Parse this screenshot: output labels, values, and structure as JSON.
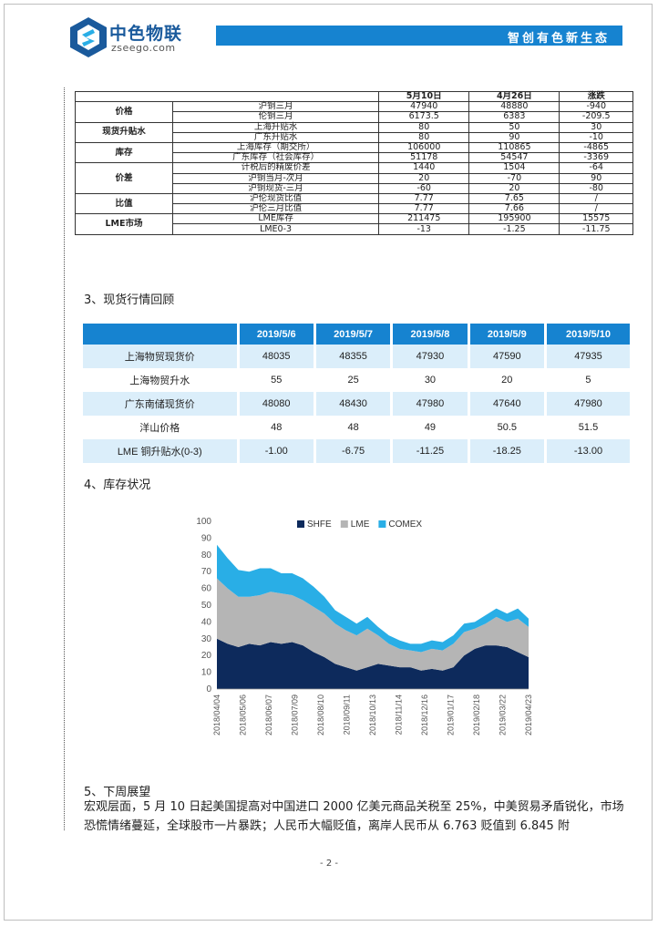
{
  "header": {
    "logo_cn": "中色物联",
    "logo_en": "zseego.com",
    "slogan": "智创有色新生态"
  },
  "table1": {
    "headers": [
      "",
      "",
      "5月10日",
      "4月26日",
      "涨跌"
    ],
    "groups": [
      {
        "category": "价格",
        "rows": [
          [
            "沪铜三月",
            "47940",
            "48880",
            "-940"
          ],
          [
            "伦铜三月",
            "6173.5",
            "6383",
            "-209.5"
          ]
        ]
      },
      {
        "category": "现货升贴水",
        "rows": [
          [
            "上海升贴水",
            "80",
            "50",
            "30"
          ],
          [
            "广东升贴水",
            "80",
            "90",
            "-10"
          ]
        ]
      },
      {
        "category": "库存",
        "rows": [
          [
            "上海库存（期交所）",
            "106000",
            "110865",
            "-4865"
          ],
          [
            "广东库存（社会库存）",
            "51178",
            "54547",
            "-3369"
          ]
        ]
      },
      {
        "category": "价差",
        "rows": [
          [
            "计税后的精废价差",
            "1440",
            "1504",
            "-64"
          ],
          [
            "沪铜当月-次月",
            "20",
            "-70",
            "90"
          ],
          [
            "沪铜现货-三月",
            "-60",
            "20",
            "-80"
          ]
        ]
      },
      {
        "category": "比值",
        "rows": [
          [
            "沪伦现货比值",
            "7.77",
            "7.65",
            "/"
          ],
          [
            "沪伦三月比值",
            "7.77",
            "7.66",
            "/"
          ]
        ]
      },
      {
        "category": "LME市场",
        "rows": [
          [
            "LME库存",
            "211475",
            "195900",
            "15575"
          ],
          [
            "LME0-3",
            "-13",
            "-1.25",
            "-11.75"
          ]
        ]
      }
    ]
  },
  "section3_title": "3、现货行情回顾",
  "table2": {
    "headers": [
      "",
      "2019/5/6",
      "2019/5/7",
      "2019/5/8",
      "2019/5/9",
      "2019/5/10"
    ],
    "rows": [
      [
        "上海物贸现货价",
        "48035",
        "48355",
        "47930",
        "47590",
        "47935"
      ],
      [
        "上海物贸升水",
        "55",
        "25",
        "30",
        "20",
        "5"
      ],
      [
        "广东南储现货价",
        "48080",
        "48430",
        "47980",
        "47640",
        "47980"
      ],
      [
        "洋山价格",
        "48",
        "48",
        "49",
        "50.5",
        "51.5"
      ],
      [
        "LME 铜升贴水(0-3)",
        "-1.00",
        "-6.75",
        "-11.25",
        "-18.25",
        "-13.00"
      ]
    ]
  },
  "section4_title": "4、库存状况",
  "chart_data": {
    "type": "area",
    "stacked": true,
    "title": "",
    "xlabel": "",
    "ylabel": "",
    "ylim": [
      0,
      100
    ],
    "yticks": [
      0,
      10,
      20,
      30,
      40,
      50,
      60,
      70,
      80,
      90,
      100
    ],
    "xticks": [
      "2018/04/04",
      "2018/05/06",
      "2018/06/07",
      "2018/07/09",
      "2018/08/10",
      "2018/09/11",
      "2018/10/13",
      "2018/11/14",
      "2018/12/16",
      "2019/01/17",
      "2019/02/18",
      "2019/03/22",
      "2019/04/23"
    ],
    "legend": [
      "SHFE",
      "LME",
      "COMEX"
    ],
    "legend_position": "top-right",
    "colors": {
      "SHFE": "#0d2a5c",
      "LME": "#b5b5b5",
      "COMEX": "#29aee6"
    },
    "series": [
      {
        "name": "SHFE",
        "values": [
          30,
          27,
          25,
          27,
          26,
          28,
          27,
          28,
          26,
          22,
          19,
          15,
          13,
          11,
          13,
          15,
          14,
          13,
          13,
          11,
          12,
          11,
          13,
          20,
          24,
          26,
          26,
          25,
          22,
          19
        ]
      },
      {
        "name": "LME",
        "values": [
          36,
          33,
          30,
          28,
          30,
          30,
          30,
          28,
          27,
          27,
          26,
          24,
          22,
          21,
          23,
          17,
          13,
          11,
          10,
          11,
          12,
          12,
          14,
          14,
          12,
          13,
          17,
          15,
          20,
          18
        ]
      },
      {
        "name": "COMEX",
        "values": [
          20,
          18,
          16,
          15,
          16,
          14,
          12,
          13,
          13,
          12,
          10,
          8,
          8,
          7,
          7,
          5,
          5,
          5,
          4,
          5,
          5,
          5,
          5,
          5,
          4,
          5,
          5,
          5,
          6,
          5
        ]
      }
    ]
  },
  "section5_title": "5、下周展望",
  "paragraph": "宏观层面，5 月 10 日起美国提高对中国进口 2000 亿美元商品关税至 25%，中美贸易矛盾锐化，市场恐慌情绪蔓延，全球股市一片暴跌；人民币大幅贬值，离岸人民币从 6.763 贬值到 6.845 附",
  "page_number": "- 2 -"
}
